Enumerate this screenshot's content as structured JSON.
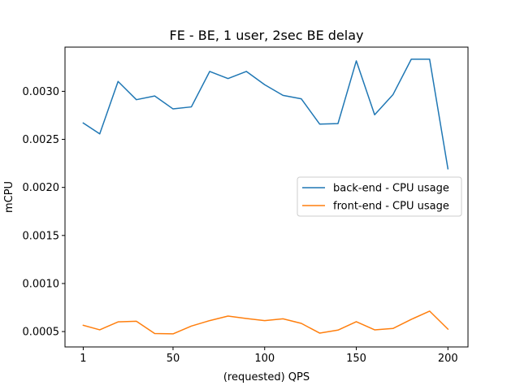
{
  "chart_data": {
    "type": "line",
    "title": "FE - BE, 1 user, 2sec BE delay",
    "xlabel": "(requested) QPS",
    "ylabel": "mCPU",
    "xlim": [
      -8.95,
      210.95
    ],
    "ylim": [
      0.00034,
      0.00346
    ],
    "x_ticks": [
      1,
      50,
      100,
      150,
      200
    ],
    "x_tick_labels": [
      "1",
      "50",
      "100",
      "150",
      "200"
    ],
    "y_ticks": [
      0.0005,
      0.001,
      0.0015,
      0.002,
      0.0025,
      0.003
    ],
    "y_tick_labels": [
      "0.0005",
      "0.0010",
      "0.0015",
      "0.0020",
      "0.0025",
      "0.0030"
    ],
    "grid": false,
    "legend_position": "center-right",
    "x": [
      1,
      10,
      20,
      30,
      40,
      50,
      60,
      70,
      80,
      90,
      100,
      110,
      120,
      130,
      140,
      150,
      160,
      170,
      180,
      190,
      200
    ],
    "series": [
      {
        "name": "back-end - CPU usage",
        "color": "#1f77b4",
        "values": [
          0.00267,
          0.002557,
          0.003103,
          0.002913,
          0.002952,
          0.002817,
          0.002838,
          0.003207,
          0.003133,
          0.003207,
          0.003069,
          0.002958,
          0.002922,
          0.002659,
          0.002664,
          0.003317,
          0.002756,
          0.002965,
          0.003334,
          0.003334,
          0.002194
        ]
      },
      {
        "name": "front-end - CPU usage",
        "color": "#ff7f0e",
        "values": [
          0.000565,
          0.000518,
          0.000601,
          0.000607,
          0.00048,
          0.000476,
          0.000557,
          0.000614,
          0.000661,
          0.000636,
          0.000614,
          0.000633,
          0.000585,
          0.000484,
          0.000515,
          0.000603,
          0.000518,
          0.000532,
          0.000627,
          0.000713,
          0.000525
        ]
      }
    ]
  }
}
